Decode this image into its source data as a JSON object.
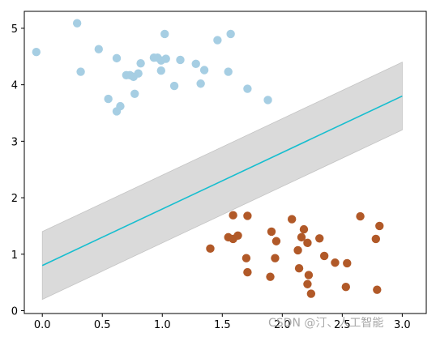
{
  "chart_data": {
    "type": "scatter",
    "title": "",
    "xlabel": "",
    "ylabel": "",
    "xlim": [
      -0.15,
      3.2
    ],
    "ylim": [
      -0.05,
      5.3
    ],
    "xticks": [
      0.0,
      0.5,
      1.0,
      1.5,
      2.0,
      2.5,
      3.0
    ],
    "xtick_labels": [
      "0.0",
      "0.5",
      "1.0",
      "1.5",
      "2.0",
      "2.5",
      "3.0"
    ],
    "yticks": [
      0,
      1,
      2,
      3,
      4,
      5
    ],
    "ytick_labels": [
      "0",
      "1",
      "2",
      "3",
      "4",
      "5"
    ],
    "grid": false,
    "legend": "none",
    "series": [
      {
        "color": "#a6cee3",
        "points": [
          [
            -0.05,
            4.58
          ],
          [
            0.29,
            5.09
          ],
          [
            0.32,
            4.23
          ],
          [
            0.47,
            4.63
          ],
          [
            0.55,
            3.75
          ],
          [
            0.62,
            4.47
          ],
          [
            0.62,
            3.53
          ],
          [
            0.65,
            3.62
          ],
          [
            0.7,
            4.17
          ],
          [
            0.73,
            4.17
          ],
          [
            0.76,
            4.14
          ],
          [
            0.77,
            3.84
          ],
          [
            0.8,
            4.2
          ],
          [
            0.82,
            4.38
          ],
          [
            0.93,
            4.48
          ],
          [
            0.96,
            4.48
          ],
          [
            0.99,
            4.25
          ],
          [
            0.99,
            4.43
          ],
          [
            1.02,
            4.9
          ],
          [
            1.03,
            4.46
          ],
          [
            1.1,
            3.98
          ],
          [
            1.15,
            4.44
          ],
          [
            1.28,
            4.37
          ],
          [
            1.32,
            4.02
          ],
          [
            1.35,
            4.26
          ],
          [
            1.46,
            4.79
          ],
          [
            1.55,
            4.23
          ],
          [
            1.57,
            4.9
          ],
          [
            1.71,
            3.93
          ],
          [
            1.88,
            3.73
          ]
        ]
      },
      {
        "color": "#b15928",
        "points": [
          [
            1.4,
            1.1
          ],
          [
            1.55,
            1.3
          ],
          [
            1.59,
            1.69
          ],
          [
            1.59,
            1.27
          ],
          [
            1.63,
            1.33
          ],
          [
            1.7,
            0.93
          ],
          [
            1.71,
            1.68
          ],
          [
            1.71,
            0.68
          ],
          [
            1.9,
            0.6
          ],
          [
            1.91,
            1.4
          ],
          [
            1.94,
            0.93
          ],
          [
            1.95,
            1.23
          ],
          [
            2.08,
            1.62
          ],
          [
            2.13,
            1.07
          ],
          [
            2.14,
            0.75
          ],
          [
            2.16,
            1.3
          ],
          [
            2.18,
            1.44
          ],
          [
            2.21,
            1.2
          ],
          [
            2.21,
            0.47
          ],
          [
            2.22,
            0.63
          ],
          [
            2.24,
            0.3
          ],
          [
            2.31,
            1.28
          ],
          [
            2.35,
            0.97
          ],
          [
            2.44,
            0.85
          ],
          [
            2.53,
            0.42
          ],
          [
            2.54,
            0.84
          ],
          [
            2.65,
            1.67
          ],
          [
            2.79,
            0.37
          ],
          [
            2.78,
            1.27
          ],
          [
            2.81,
            1.5
          ]
        ]
      }
    ],
    "fit_line": {
      "color": "#17becf",
      "points": [
        [
          0.0,
          0.8
        ],
        [
          3.0,
          3.8
        ]
      ]
    },
    "margin_band": {
      "color": "#d3d3d3",
      "upper": [
        [
          0.0,
          1.4
        ],
        [
          3.0,
          4.4
        ]
      ],
      "lower": [
        [
          0.0,
          0.2
        ],
        [
          3.0,
          3.2
        ]
      ]
    }
  },
  "watermark": "CSDN @汀、人工智能"
}
